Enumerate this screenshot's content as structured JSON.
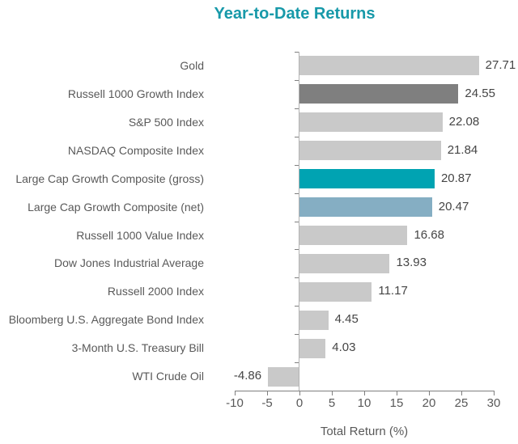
{
  "chart_data": {
    "type": "bar",
    "orientation": "horizontal",
    "title": "Year-to-Date Returns",
    "xlabel": "Total Return (%)",
    "x_ticks": [
      "-10",
      "-5",
      "0",
      "5",
      "10",
      "15",
      "20",
      "25",
      "30"
    ],
    "xlim": [
      -10,
      30
    ],
    "grid": "off",
    "legend": "none",
    "series": [
      {
        "label": "Gold",
        "value": 27.71,
        "value_label": "27.71",
        "color": "#c9c9c9"
      },
      {
        "label": "Russell 1000 Growth Index",
        "value": 24.55,
        "value_label": "24.55",
        "color": "#7f7f7f"
      },
      {
        "label": "S&P 500 Index",
        "value": 22.08,
        "value_label": "22.08",
        "color": "#c9c9c9"
      },
      {
        "label": "NASDAQ Composite Index",
        "value": 21.84,
        "value_label": "21.84",
        "color": "#c9c9c9"
      },
      {
        "label": "Large Cap Growth Composite (gross)",
        "value": 20.87,
        "value_label": "20.87",
        "color": "#00a3b2"
      },
      {
        "label": "Large Cap Growth Composite (net)",
        "value": 20.47,
        "value_label": "20.47",
        "color": "#85aec3"
      },
      {
        "label": "Russell 1000 Value Index",
        "value": 16.68,
        "value_label": "16.68",
        "color": "#c9c9c9"
      },
      {
        "label": "Dow Jones Industrial Average",
        "value": 13.93,
        "value_label": "13.93",
        "color": "#c9c9c9"
      },
      {
        "label": "Russell 2000 Index",
        "value": 11.17,
        "value_label": "11.17",
        "color": "#c9c9c9"
      },
      {
        "label": "Bloomberg U.S. Aggregate Bond Index",
        "value": 4.45,
        "value_label": "4.45",
        "color": "#c9c9c9"
      },
      {
        "label": "3-Month U.S. Treasury Bill",
        "value": 4.03,
        "value_label": "4.03",
        "color": "#c9c9c9"
      },
      {
        "label": "WTI Crude Oil",
        "value": -4.86,
        "value_label": "-4.86",
        "color": "#c9c9c9"
      }
    ]
  },
  "colors": {
    "title": "#1799a9",
    "category_label": "#595959",
    "value_label": "#454545",
    "axis_line": "#7f7f7f",
    "y_axis_line": "#b3b3b3",
    "tick_label": "#595959",
    "x_axis_title": "#595959"
  }
}
